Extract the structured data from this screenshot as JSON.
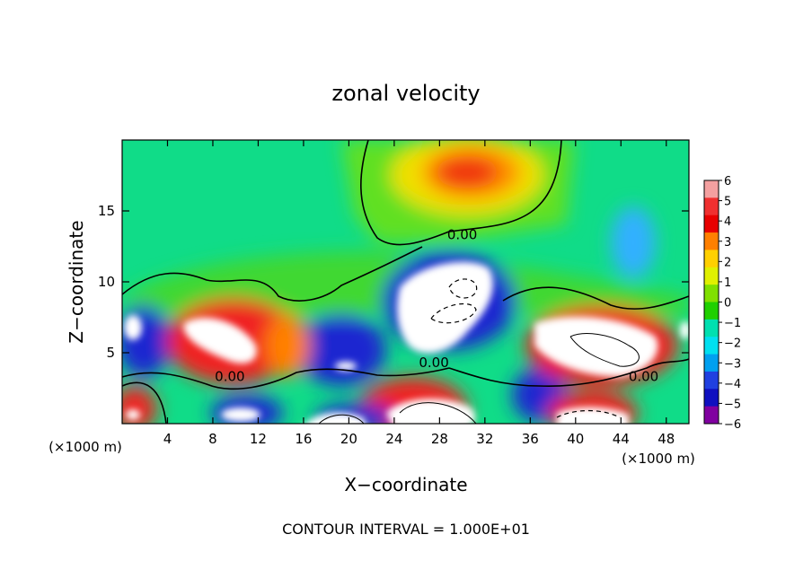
{
  "chart_data": {
    "type": "heatmap",
    "title": "zonal velocity",
    "xlabel": "X−coordinate",
    "ylabel": "Z−coordinate",
    "x_unit_left": "(×1000 m)",
    "x_unit_right": "(×1000 m)",
    "footer": "CONTOUR INTERVAL = 1.000E+01",
    "xlim": [
      0,
      50
    ],
    "ylim": [
      0,
      20
    ],
    "x_ticks": [
      4,
      8,
      12,
      16,
      20,
      24,
      28,
      32,
      36,
      40,
      44,
      48
    ],
    "y_ticks": [
      5,
      10,
      15
    ],
    "colorbar": {
      "ticks": [
        6,
        5,
        4,
        3,
        2,
        1,
        0,
        -1,
        -2,
        -3,
        -4,
        -5,
        -6
      ],
      "tick_labels": [
        "6",
        "5",
        "4",
        "3",
        "2",
        "1",
        "0",
        "−1",
        "−2",
        "−3",
        "−4",
        "−5",
        "−6"
      ],
      "colors": [
        "#f4a0a0",
        "#f03030",
        "#e80000",
        "#ff8000",
        "#ffd000",
        "#e0f000",
        "#80e000",
        "#20d000",
        "#00e0b0",
        "#00e0f0",
        "#00a0f0",
        "#2040e0",
        "#1010c0",
        "#8000a0"
      ]
    },
    "contour_labels": [
      {
        "text": "0.00",
        "x": 30,
        "y": 13
      },
      {
        "text": "0.00",
        "x": 9.5,
        "y": 3
      },
      {
        "text": "0.00",
        "x": 27.5,
        "y": 4
      },
      {
        "text": "0.00",
        "x": 46,
        "y": 3
      }
    ]
  }
}
